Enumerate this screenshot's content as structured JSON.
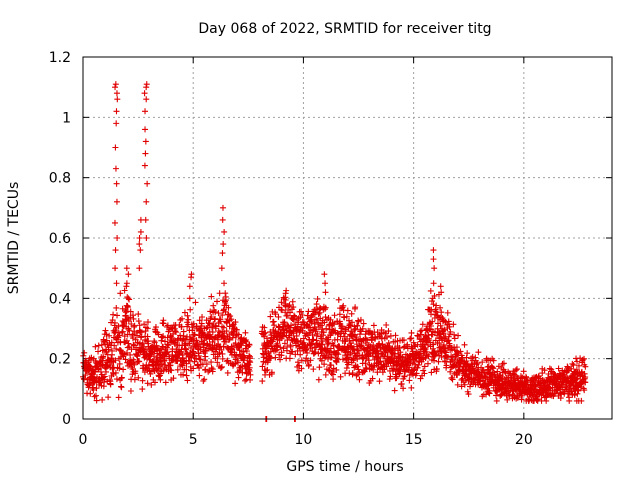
{
  "chart_data": {
    "type": "scatter",
    "title": "Day 068 of 2022, SRMTID for receiver titg",
    "xlabel": "GPS time / hours",
    "ylabel": "SRMTID / TECUs",
    "xlim": [
      0,
      24
    ],
    "ylim": [
      0,
      1.2
    ],
    "x_ticks": [
      0,
      5,
      10,
      15,
      20
    ],
    "x_tick_labels": [
      "0",
      "5",
      "10",
      "15",
      "20"
    ],
    "y_ticks": [
      0,
      0.2,
      0.4,
      0.6,
      0.8,
      1.0,
      1.2
    ],
    "y_tick_labels": [
      "0",
      "0.2",
      "0.4",
      "0.6",
      "0.8",
      "1",
      "1.2"
    ],
    "grid": true,
    "marker": "+",
    "color": "#e00000",
    "trend_hours": [
      0,
      0.5,
      1.0,
      1.4,
      1.7,
      2.0,
      2.3,
      2.6,
      3.0,
      3.5,
      4.0,
      4.5,
      5.0,
      5.5,
      6.0,
      6.4,
      7.0,
      7.5,
      8.4,
      9.0,
      9.5,
      10.0,
      10.5,
      11.0,
      11.5,
      12.0,
      12.5,
      13.0,
      13.5,
      14.0,
      14.5,
      15.0,
      15.5,
      16.0,
      16.5,
      17.0,
      17.5,
      18.0,
      18.5,
      19.0,
      19.5,
      20.0,
      20.5,
      21.0,
      21.5,
      22.0,
      22.5,
      22.8
    ],
    "trend_srmtid": [
      0.16,
      0.14,
      0.2,
      0.25,
      0.22,
      0.3,
      0.25,
      0.24,
      0.22,
      0.2,
      0.22,
      0.24,
      0.26,
      0.24,
      0.28,
      0.3,
      0.22,
      0.2,
      0.24,
      0.3,
      0.3,
      0.26,
      0.28,
      0.26,
      0.25,
      0.27,
      0.24,
      0.22,
      0.22,
      0.2,
      0.18,
      0.2,
      0.24,
      0.3,
      0.24,
      0.2,
      0.16,
      0.14,
      0.14,
      0.12,
      0.11,
      0.1,
      0.1,
      0.11,
      0.12,
      0.12,
      0.13,
      0.15
    ],
    "trend_spread": [
      0.05,
      0.05,
      0.08,
      0.12,
      0.12,
      0.12,
      0.12,
      0.08,
      0.08,
      0.07,
      0.07,
      0.08,
      0.08,
      0.08,
      0.1,
      0.1,
      0.07,
      0.06,
      0.07,
      0.08,
      0.08,
      0.08,
      0.1,
      0.09,
      0.08,
      0.09,
      0.08,
      0.07,
      0.07,
      0.06,
      0.06,
      0.06,
      0.07,
      0.1,
      0.08,
      0.06,
      0.05,
      0.05,
      0.05,
      0.04,
      0.04,
      0.04,
      0.04,
      0.04,
      0.04,
      0.04,
      0.05,
      0.05
    ],
    "spikes": [
      {
        "hour": 1.5,
        "values": [
          0.45,
          0.5,
          0.56,
          0.6,
          0.65,
          0.72,
          0.78,
          0.83,
          0.9,
          0.98,
          1.02,
          1.06,
          1.08,
          1.1,
          1.11
        ]
      },
      {
        "hour": 2.0,
        "values": [
          0.4,
          0.44,
          0.48,
          0.5,
          0.45
        ]
      },
      {
        "hour": 2.6,
        "values": [
          0.5,
          0.56,
          0.58,
          0.6,
          0.62,
          0.66
        ]
      },
      {
        "hour": 2.85,
        "values": [
          0.6,
          0.66,
          0.72,
          0.78,
          0.84,
          0.88,
          0.92,
          0.96,
          1.02,
          1.06,
          1.08,
          1.1,
          1.11
        ]
      },
      {
        "hour": 4.9,
        "values": [
          0.4,
          0.44,
          0.47,
          0.48
        ]
      },
      {
        "hour": 6.35,
        "values": [
          0.45,
          0.5,
          0.55,
          0.58,
          0.62,
          0.66,
          0.7
        ]
      },
      {
        "hour": 11.0,
        "values": [
          0.42,
          0.45,
          0.48
        ]
      },
      {
        "hour": 15.9,
        "values": [
          0.4,
          0.45,
          0.5,
          0.53,
          0.56
        ]
      },
      {
        "hour": 16.2,
        "values": [
          0.42,
          0.44
        ]
      }
    ],
    "isolated_points": [
      {
        "x": 8.3,
        "y": 0.0
      },
      {
        "x": 9.6,
        "y": 0.0
      }
    ]
  }
}
